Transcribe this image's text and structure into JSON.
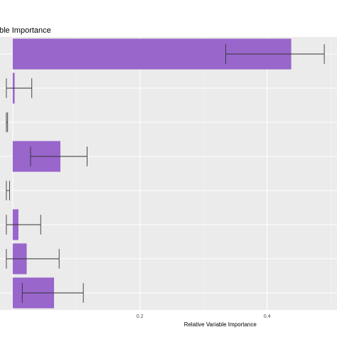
{
  "chart_data": {
    "type": "bar",
    "orientation": "horizontal",
    "title": "ble Importance",
    "xlabel": "Relative Variable Importance",
    "ylabel": "",
    "xticks": [
      0.2,
      0.4
    ],
    "xtick_labels": [
      "0.2",
      "0.4"
    ],
    "xlim": [
      -0.02,
      0.51
    ],
    "grid": true,
    "legend": "none",
    "bars": [
      {
        "value": 0.438,
        "err_low": 0.335,
        "err_high": 0.49
      },
      {
        "value": 0.003,
        "err_low": -0.01,
        "err_high": 0.03
      },
      {
        "value": 0.0,
        "err_low": -0.01,
        "err_high": -0.008
      },
      {
        "value": 0.075,
        "err_low": 0.028,
        "err_high": 0.117
      },
      {
        "value": 0.0,
        "err_low": -0.01,
        "err_high": -0.005
      },
      {
        "value": 0.009,
        "err_low": -0.01,
        "err_high": 0.044
      },
      {
        "value": 0.022,
        "err_low": -0.01,
        "err_high": 0.073
      },
      {
        "value": 0.065,
        "err_low": 0.015,
        "err_high": 0.111
      }
    ],
    "colors": {
      "bar": "#9966cc",
      "panel": "#ebebeb",
      "grid_major": "#ffffff",
      "grid_minor": "#f5f5f5",
      "errorbar": "#333333"
    }
  }
}
